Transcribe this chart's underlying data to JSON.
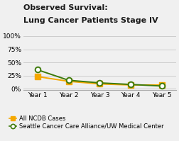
{
  "title_line1": "Observed Survival:",
  "title_line2": "Lung Cancer Patients Stage IV",
  "years": [
    "Year 1",
    "Year 2",
    "Year 3",
    "Year 4",
    "Year 5"
  ],
  "ncdb_values": [
    23,
    14,
    9,
    7,
    7
  ],
  "seattle_values": [
    36,
    16,
    11,
    8,
    5
  ],
  "ncdb_color": "#f5a800",
  "seattle_color": "#3d7a0a",
  "yticks": [
    0,
    25,
    50,
    75,
    100
  ],
  "yticklabels": [
    "0%",
    "25%",
    "50%",
    "75%",
    "100%"
  ],
  "ylim": [
    -3,
    107
  ],
  "xlim": [
    0.55,
    5.45
  ],
  "background_color": "#f0f0f0",
  "ncdb_label": "All NCDB Cases",
  "seattle_label": "Seattle Cancer Care Alliance/UW Medical Center",
  "title_fontsize": 8.0,
  "tick_fontsize": 6.5,
  "legend_fontsize": 6.0,
  "grid_color": "#cccccc",
  "marker_size": 5.5
}
